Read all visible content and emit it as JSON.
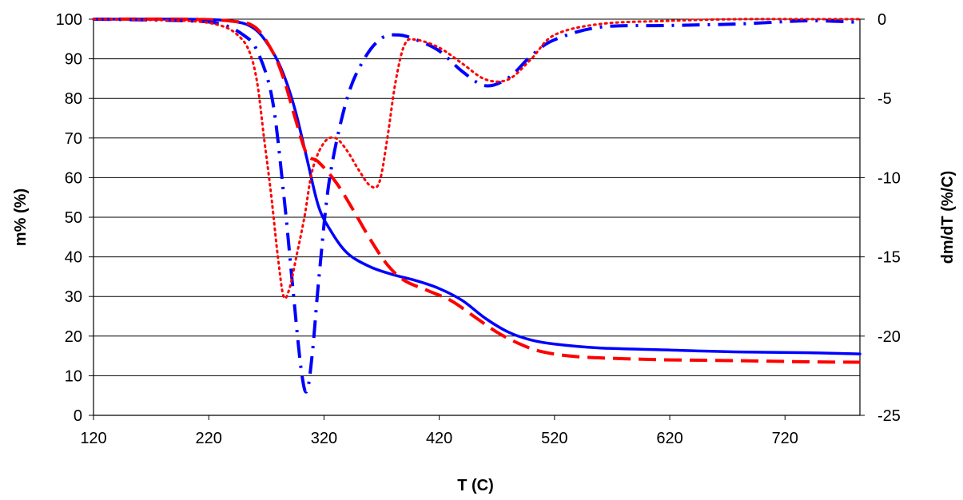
{
  "chart_data": {
    "type": "line",
    "title": "",
    "xlabel": "T (C)",
    "ylabel": "m% (%)",
    "y2label": "dm/dT (%/C)",
    "xlim": [
      120,
      785
    ],
    "ylim": [
      0,
      100
    ],
    "y2lim": [
      -25,
      0
    ],
    "xticks": [
      120,
      220,
      320,
      420,
      520,
      620,
      720
    ],
    "yticks": [
      0,
      10,
      20,
      30,
      40,
      50,
      60,
      70,
      80,
      90,
      100
    ],
    "y2ticks": [
      -25,
      -20,
      -15,
      -10,
      -5,
      0
    ],
    "grid": "horizontal",
    "legend": "none",
    "series": [
      {
        "axis": "left",
        "style": "solid",
        "color": "#0000ff",
        "x": [
          120,
          200,
          240,
          260,
          275,
          285,
          295,
          305,
          315,
          325,
          340,
          360,
          380,
          400,
          420,
          440,
          460,
          480,
          500,
          520,
          560,
          620,
          680,
          740,
          785
        ],
        "y": [
          100,
          100,
          99.5,
          97.5,
          92,
          86,
          77,
          65,
          53,
          47,
          41,
          37.5,
          35.5,
          34,
          32,
          29,
          24.5,
          21,
          19,
          18,
          17,
          16.5,
          16,
          15.8,
          15.5
        ]
      },
      {
        "axis": "left",
        "style": "dashed",
        "color": "#ff0000",
        "x": [
          120,
          200,
          240,
          260,
          275,
          285,
          295,
          305,
          315,
          330,
          345,
          360,
          375,
          390,
          410,
          430,
          450,
          470,
          490,
          510,
          540,
          580,
          620,
          680,
          740,
          785
        ],
        "y": [
          100,
          100,
          99.5,
          98,
          92,
          85,
          75,
          66,
          64,
          59,
          52,
          44.5,
          38,
          34,
          31.5,
          29,
          25,
          21,
          18,
          16,
          14.8,
          14.3,
          14,
          13.8,
          13.5,
          13.4
        ]
      },
      {
        "axis": "right",
        "style": "dash-dot",
        "color": "#0000ff",
        "x": [
          120,
          200,
          230,
          250,
          262,
          275,
          285,
          293,
          300,
          305,
          310,
          316,
          325,
          340,
          355,
          370,
          385,
          400,
          420,
          440,
          460,
          480,
          500,
          520,
          560,
          620,
          680,
          740,
          785
        ],
        "y": [
          0,
          -0.1,
          -0.3,
          -1,
          -2,
          -5,
          -11,
          -17,
          -22,
          -23.5,
          -21,
          -16,
          -10,
          -5,
          -2.5,
          -1.2,
          -1,
          -1.3,
          -2,
          -3.3,
          -4.2,
          -3.7,
          -2.3,
          -1.3,
          -0.5,
          -0.4,
          -0.3,
          -0.1,
          -0.2
        ]
      },
      {
        "axis": "right",
        "style": "dotted",
        "color": "#ff0000",
        "x": [
          120,
          200,
          230,
          245,
          255,
          262,
          268,
          274,
          280,
          285,
          290,
          296,
          303,
          310,
          320,
          330,
          340,
          350,
          360,
          368,
          375,
          382,
          390,
          400,
          420,
          440,
          460,
          480,
          500,
          520,
          560,
          620,
          680,
          740,
          785
        ],
        "y": [
          0,
          -0.1,
          -0.4,
          -1,
          -2,
          -4,
          -7.5,
          -11,
          -15,
          -17.5,
          -17,
          -15,
          -12.5,
          -9.5,
          -7.8,
          -7.5,
          -8.3,
          -9.5,
          -10.5,
          -10.3,
          -7.5,
          -4,
          -1.6,
          -1.3,
          -1.8,
          -2.8,
          -3.8,
          -3.8,
          -2.5,
          -1,
          -0.3,
          -0.1,
          0,
          0,
          0
        ]
      }
    ]
  }
}
